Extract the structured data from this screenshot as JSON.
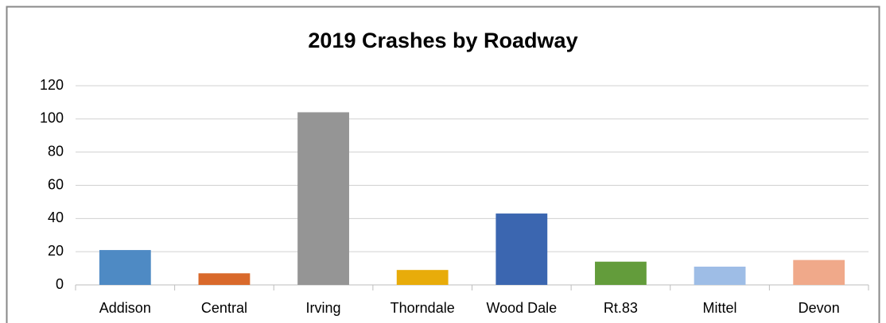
{
  "chart_data": {
    "type": "bar",
    "title": "2019 Crashes by Roadway",
    "categories": [
      "Addison",
      "Central",
      "Irving",
      "Thorndale",
      "Wood Dale",
      "Rt.83",
      "Mittel",
      "Devon"
    ],
    "values": [
      21,
      7,
      104,
      9,
      43,
      14,
      11,
      15
    ],
    "colors": [
      "#4e8ac4",
      "#d9692b",
      "#959595",
      "#e8ac0a",
      "#3b66b0",
      "#639c3b",
      "#9ebde6",
      "#f0a98a"
    ],
    "ylim": [
      0,
      120
    ],
    "yticks": [
      0,
      20,
      40,
      60,
      80,
      100,
      120
    ],
    "grid": true
  }
}
